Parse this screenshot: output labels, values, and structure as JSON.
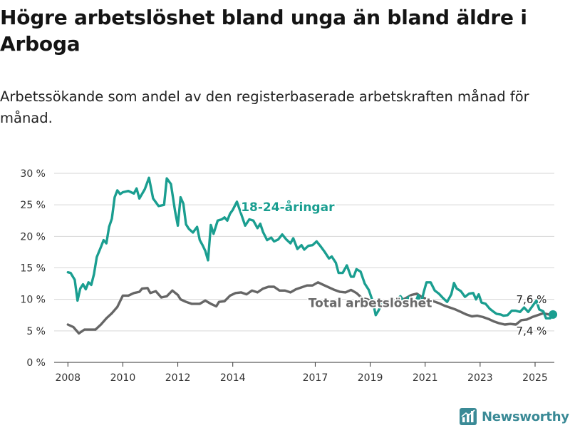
{
  "title": "Högre arbetslöshet bland unga än bland äldre i Arboga",
  "subtitle": "Arbetssökande som andel av den registerbaserade arbetskraften månad för månad.",
  "brand": {
    "name": "Newsworthy",
    "icon": "newsworthy-logo-icon",
    "color": "#3a8a96"
  },
  "chart_data": {
    "type": "line",
    "title": "",
    "xlabel": "",
    "ylabel": "",
    "ylim": [
      0,
      30
    ],
    "xlim": [
      2007.5,
      2025.7
    ],
    "grid": true,
    "legend": "inline labels",
    "y_ticks": [
      0,
      5,
      10,
      15,
      20,
      25,
      30
    ],
    "y_tick_labels": [
      "0 %",
      "5 %",
      "10 %",
      "15 %",
      "20 %",
      "25 %",
      "30 %"
    ],
    "x_ticks": [
      2008,
      2010,
      2012,
      2014,
      2017,
      2019,
      2021,
      2023,
      2025
    ],
    "x_tick_labels": [
      "2008",
      "2010",
      "2012",
      "2014",
      "2017",
      "2019",
      "2021",
      "2023",
      "2025"
    ],
    "series": [
      {
        "name": "Total arbetslöshet",
        "color": "#666666",
        "end_label": "7,4 %",
        "points": [
          [
            2008.0,
            6.0
          ],
          [
            2008.2,
            5.6
          ],
          [
            2008.4,
            4.6
          ],
          [
            2008.6,
            5.2
          ],
          [
            2008.8,
            5.2
          ],
          [
            2009.0,
            5.2
          ],
          [
            2009.2,
            6.0
          ],
          [
            2009.4,
            7.0
          ],
          [
            2009.6,
            7.8
          ],
          [
            2009.8,
            8.8
          ],
          [
            2010.0,
            10.6
          ],
          [
            2010.2,
            10.6
          ],
          [
            2010.4,
            11.0
          ],
          [
            2010.6,
            11.2
          ],
          [
            2010.7,
            11.7
          ],
          [
            2010.9,
            11.8
          ],
          [
            2011.0,
            11.0
          ],
          [
            2011.2,
            11.3
          ],
          [
            2011.4,
            10.3
          ],
          [
            2011.6,
            10.5
          ],
          [
            2011.8,
            11.4
          ],
          [
            2012.0,
            10.7
          ],
          [
            2012.1,
            10.0
          ],
          [
            2012.3,
            9.6
          ],
          [
            2012.5,
            9.3
          ],
          [
            2012.8,
            9.3
          ],
          [
            2013.0,
            9.8
          ],
          [
            2013.2,
            9.3
          ],
          [
            2013.4,
            8.9
          ],
          [
            2013.5,
            9.6
          ],
          [
            2013.7,
            9.7
          ],
          [
            2013.9,
            10.6
          ],
          [
            2014.1,
            11.0
          ],
          [
            2014.3,
            11.1
          ],
          [
            2014.5,
            10.8
          ],
          [
            2014.7,
            11.4
          ],
          [
            2014.9,
            11.1
          ],
          [
            2015.1,
            11.7
          ],
          [
            2015.3,
            12.0
          ],
          [
            2015.5,
            12.0
          ],
          [
            2015.7,
            11.4
          ],
          [
            2015.9,
            11.4
          ],
          [
            2016.1,
            11.1
          ],
          [
            2016.3,
            11.6
          ],
          [
            2016.5,
            11.9
          ],
          [
            2016.7,
            12.2
          ],
          [
            2016.9,
            12.2
          ],
          [
            2017.1,
            12.7
          ],
          [
            2017.3,
            12.3
          ],
          [
            2017.5,
            11.9
          ],
          [
            2017.7,
            11.5
          ],
          [
            2017.9,
            11.2
          ],
          [
            2018.1,
            11.1
          ],
          [
            2018.3,
            11.5
          ],
          [
            2018.5,
            11.0
          ],
          [
            2018.7,
            10.2
          ],
          [
            2018.9,
            10.0
          ],
          [
            2019.1,
            9.6
          ],
          [
            2019.3,
            9.8
          ],
          [
            2019.5,
            9.6
          ],
          [
            2019.7,
            9.5
          ],
          [
            2019.9,
            9.8
          ],
          [
            2020.1,
            9.8
          ],
          [
            2020.3,
            10.2
          ],
          [
            2020.5,
            10.7
          ],
          [
            2020.7,
            10.9
          ],
          [
            2020.9,
            10.3
          ],
          [
            2021.1,
            10.0
          ],
          [
            2021.3,
            9.7
          ],
          [
            2021.5,
            9.4
          ],
          [
            2021.7,
            9.0
          ],
          [
            2021.9,
            8.7
          ],
          [
            2022.1,
            8.4
          ],
          [
            2022.3,
            8.0
          ],
          [
            2022.5,
            7.6
          ],
          [
            2022.7,
            7.3
          ],
          [
            2022.9,
            7.4
          ],
          [
            2023.1,
            7.2
          ],
          [
            2023.3,
            6.9
          ],
          [
            2023.5,
            6.5
          ],
          [
            2023.7,
            6.2
          ],
          [
            2023.9,
            6.0
          ],
          [
            2024.1,
            6.1
          ],
          [
            2024.3,
            6.0
          ],
          [
            2024.5,
            6.7
          ],
          [
            2024.7,
            6.8
          ],
          [
            2024.9,
            7.2
          ],
          [
            2025.1,
            7.5
          ],
          [
            2025.3,
            7.8
          ],
          [
            2025.5,
            7.6
          ],
          [
            2025.65,
            7.4
          ]
        ]
      },
      {
        "name": "18-24-åringar",
        "color": "#1a9e90",
        "end_label": "7,6 %",
        "points": [
          [
            2008.0,
            14.3
          ],
          [
            2008.1,
            14.2
          ],
          [
            2008.25,
            13.1
          ],
          [
            2008.35,
            9.8
          ],
          [
            2008.45,
            11.7
          ],
          [
            2008.55,
            12.4
          ],
          [
            2008.65,
            11.6
          ],
          [
            2008.75,
            12.7
          ],
          [
            2008.85,
            12.3
          ],
          [
            2008.95,
            14.0
          ],
          [
            2009.05,
            16.7
          ],
          [
            2009.2,
            18.3
          ],
          [
            2009.3,
            19.4
          ],
          [
            2009.4,
            18.9
          ],
          [
            2009.5,
            21.5
          ],
          [
            2009.6,
            22.8
          ],
          [
            2009.7,
            26.2
          ],
          [
            2009.8,
            27.3
          ],
          [
            2009.9,
            26.7
          ],
          [
            2010.0,
            27.0
          ],
          [
            2010.2,
            27.2
          ],
          [
            2010.4,
            26.8
          ],
          [
            2010.5,
            27.6
          ],
          [
            2010.6,
            26.0
          ],
          [
            2010.8,
            27.5
          ],
          [
            2010.95,
            29.3
          ],
          [
            2011.1,
            26.0
          ],
          [
            2011.3,
            24.8
          ],
          [
            2011.5,
            25.0
          ],
          [
            2011.6,
            29.2
          ],
          [
            2011.75,
            28.3
          ],
          [
            2011.9,
            24.0
          ],
          [
            2012.0,
            21.7
          ],
          [
            2012.1,
            26.2
          ],
          [
            2012.2,
            25.2
          ],
          [
            2012.3,
            21.9
          ],
          [
            2012.4,
            21.2
          ],
          [
            2012.55,
            20.6
          ],
          [
            2012.7,
            21.5
          ],
          [
            2012.8,
            19.4
          ],
          [
            2012.9,
            18.6
          ],
          [
            2013.0,
            17.7
          ],
          [
            2013.1,
            16.2
          ],
          [
            2013.2,
            21.8
          ],
          [
            2013.3,
            20.4
          ],
          [
            2013.45,
            22.5
          ],
          [
            2013.6,
            22.7
          ],
          [
            2013.7,
            23.0
          ],
          [
            2013.8,
            22.5
          ],
          [
            2013.9,
            23.6
          ],
          [
            2014.0,
            24.2
          ],
          [
            2014.15,
            25.5
          ],
          [
            2014.3,
            23.6
          ],
          [
            2014.45,
            21.7
          ],
          [
            2014.6,
            22.7
          ],
          [
            2014.75,
            22.5
          ],
          [
            2014.9,
            21.3
          ],
          [
            2015.0,
            22.0
          ],
          [
            2015.1,
            20.7
          ],
          [
            2015.25,
            19.4
          ],
          [
            2015.4,
            19.8
          ],
          [
            2015.5,
            19.2
          ],
          [
            2015.65,
            19.5
          ],
          [
            2015.8,
            20.3
          ],
          [
            2015.95,
            19.5
          ],
          [
            2016.1,
            18.9
          ],
          [
            2016.2,
            19.7
          ],
          [
            2016.35,
            18.0
          ],
          [
            2016.5,
            18.6
          ],
          [
            2016.6,
            17.9
          ],
          [
            2016.75,
            18.5
          ],
          [
            2016.9,
            18.6
          ],
          [
            2017.05,
            19.2
          ],
          [
            2017.2,
            18.4
          ],
          [
            2017.35,
            17.5
          ],
          [
            2017.5,
            16.5
          ],
          [
            2017.6,
            16.8
          ],
          [
            2017.75,
            15.8
          ],
          [
            2017.85,
            14.2
          ],
          [
            2018.0,
            14.2
          ],
          [
            2018.15,
            15.4
          ],
          [
            2018.3,
            13.6
          ],
          [
            2018.4,
            13.6
          ],
          [
            2018.5,
            14.8
          ],
          [
            2018.65,
            14.4
          ],
          [
            2018.8,
            12.5
          ],
          [
            2018.95,
            11.5
          ],
          [
            2019.1,
            9.6
          ],
          [
            2019.2,
            7.5
          ],
          [
            2019.3,
            8.2
          ],
          [
            2019.45,
            9.5
          ],
          [
            2019.6,
            9.3
          ],
          [
            2019.75,
            9.9
          ],
          [
            2019.9,
            9.7
          ],
          [
            2020.1,
            10.5
          ],
          [
            2020.25,
            9.6
          ],
          [
            2020.4,
            10.4
          ],
          [
            2020.6,
            9.0
          ],
          [
            2020.75,
            10.7
          ],
          [
            2020.85,
            9.3
          ],
          [
            2020.95,
            11.2
          ],
          [
            2021.05,
            12.7
          ],
          [
            2021.2,
            12.7
          ],
          [
            2021.35,
            11.4
          ],
          [
            2021.5,
            10.9
          ],
          [
            2021.65,
            10.2
          ],
          [
            2021.8,
            9.6
          ],
          [
            2021.95,
            10.8
          ],
          [
            2022.05,
            12.6
          ],
          [
            2022.15,
            11.7
          ],
          [
            2022.3,
            11.3
          ],
          [
            2022.45,
            10.4
          ],
          [
            2022.6,
            10.9
          ],
          [
            2022.75,
            11.0
          ],
          [
            2022.85,
            10.0
          ],
          [
            2022.95,
            10.8
          ],
          [
            2023.05,
            9.5
          ],
          [
            2023.2,
            9.3
          ],
          [
            2023.35,
            8.5
          ],
          [
            2023.5,
            8.0
          ],
          [
            2023.6,
            7.7
          ],
          [
            2023.75,
            7.6
          ],
          [
            2023.85,
            7.4
          ],
          [
            2024.0,
            7.5
          ],
          [
            2024.15,
            8.2
          ],
          [
            2024.3,
            8.2
          ],
          [
            2024.45,
            8.0
          ],
          [
            2024.6,
            8.7
          ],
          [
            2024.75,
            8.0
          ],
          [
            2024.9,
            8.9
          ],
          [
            2025.05,
            9.8
          ],
          [
            2025.15,
            8.4
          ],
          [
            2025.3,
            8.1
          ],
          [
            2025.4,
            7.0
          ],
          [
            2025.55,
            7.0
          ],
          [
            2025.65,
            7.6
          ]
        ]
      }
    ],
    "annotations": [
      {
        "text": "18-24-åringar",
        "series": "18-24-åringar",
        "color": "#1a9e90",
        "at": [
          2016.0,
          24.0
        ]
      },
      {
        "text": "Total arbetslöshet",
        "series": "Total arbetslöshet",
        "color": "#6a6a6a",
        "at": [
          2019.0,
          8.8
        ]
      }
    ]
  }
}
